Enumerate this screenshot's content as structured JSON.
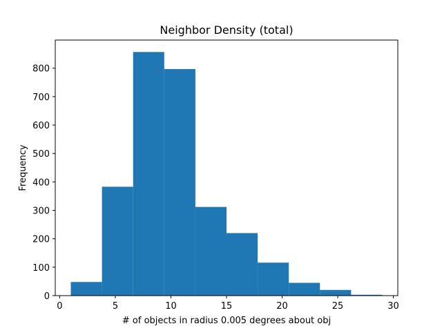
{
  "chart_data": {
    "type": "bar",
    "title": "Neighbor Density (total)",
    "xlabel": "# of objects in radius 0.005 degrees about obj",
    "ylabel": "Frequency",
    "bin_edges": [
      1.0,
      3.8,
      6.6,
      9.4,
      12.2,
      15.0,
      17.8,
      20.6,
      23.4,
      26.2,
      29.0
    ],
    "values": [
      48,
      383,
      857,
      797,
      312,
      220,
      116,
      45,
      20,
      3
    ],
    "xlim": [
      -0.4,
      30.4
    ],
    "ylim": [
      0,
      899
    ],
    "xticks": [
      0,
      5,
      10,
      15,
      20,
      25,
      30
    ],
    "yticks": [
      0,
      100,
      200,
      300,
      400,
      500,
      600,
      700,
      800
    ],
    "bar_color": "#1f77b4",
    "grid": false
  }
}
